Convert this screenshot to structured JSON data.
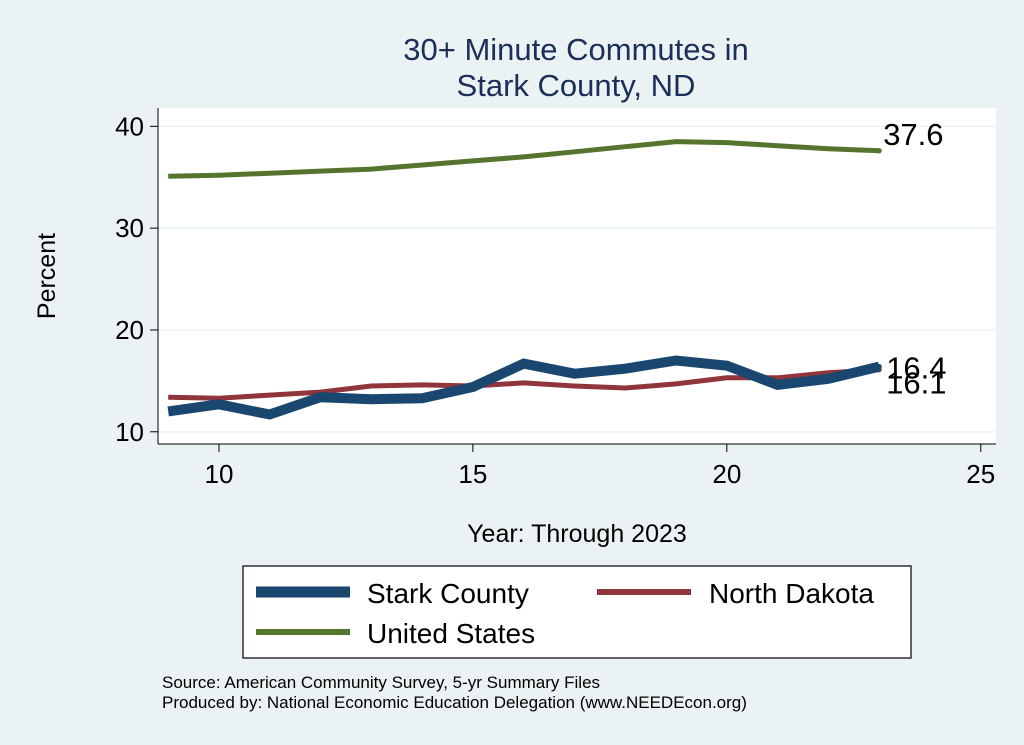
{
  "chart_data": {
    "type": "line",
    "title_lines": [
      "30+ Minute Commutes in",
      "Stark County, ND"
    ],
    "xlabel": "Year: Through 2023",
    "ylabel": "Percent",
    "xlim": [
      8.8,
      25.3
    ],
    "ylim": [
      8.8,
      41.8
    ],
    "x_ticks": [
      10,
      15,
      20,
      25
    ],
    "y_ticks": [
      10,
      20,
      30,
      40
    ],
    "grid": true,
    "series": [
      {
        "name": "Stark County",
        "color": "#1a476f",
        "x": [
          9,
          10,
          11,
          12,
          13,
          14,
          15,
          16,
          17,
          18,
          19,
          20,
          21,
          22,
          23
        ],
        "values": [
          12.0,
          12.7,
          11.7,
          13.4,
          13.2,
          13.3,
          14.4,
          16.7,
          15.7,
          16.2,
          17.0,
          16.5,
          14.6,
          15.2,
          16.4
        ],
        "end_label": "16.4"
      },
      {
        "name": "North Dakota",
        "color": "#90353b",
        "x": [
          9,
          10,
          11,
          12,
          13,
          14,
          15,
          16,
          17,
          18,
          19,
          20,
          21,
          22,
          23
        ],
        "values": [
          13.4,
          13.3,
          13.6,
          13.9,
          14.5,
          14.6,
          14.5,
          14.8,
          14.5,
          14.3,
          14.7,
          15.3,
          15.3,
          15.8,
          16.1
        ],
        "end_label": "16.1"
      },
      {
        "name": "United States",
        "color": "#55752f",
        "x": [
          9,
          10,
          11,
          12,
          13,
          14,
          15,
          16,
          17,
          18,
          19,
          20,
          21,
          22,
          23
        ],
        "values": [
          35.1,
          35.2,
          35.4,
          35.6,
          35.8,
          36.2,
          36.6,
          37.0,
          37.5,
          38.0,
          38.5,
          38.4,
          38.1,
          37.8,
          37.6
        ],
        "end_label": "37.6"
      }
    ],
    "legend": {
      "placement": "bottom",
      "entries": [
        "Stark County",
        "North Dakota",
        "United States"
      ]
    }
  },
  "notes": {
    "source": "Source: American Community Survey, 5-yr Summary Files",
    "produced_by": "Produced by: National Economic Education Delegation (www.NEEDEcon.org)"
  }
}
